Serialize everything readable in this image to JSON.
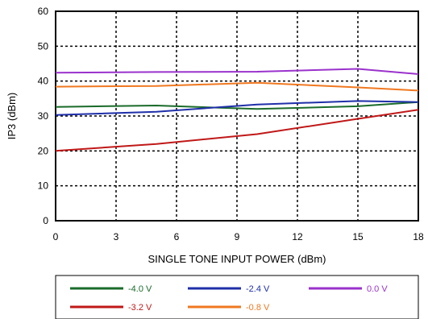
{
  "chart_data": {
    "type": "line",
    "title": "",
    "xlabel": "SINGLE TONE INPUT POWER (dBm)",
    "ylabel": "IP3 (dBm)",
    "xlim": [
      0,
      18
    ],
    "ylim": [
      0,
      60
    ],
    "xticks": [
      "0",
      "3",
      "6",
      "9",
      "12",
      "15",
      "18"
    ],
    "yticks": [
      "0",
      "10",
      "20",
      "30",
      "40",
      "50",
      "60"
    ],
    "grid": true,
    "legend_position": "bottom",
    "series": [
      {
        "name": "-4.0 V",
        "color": "#1a6b2a",
        "x": [
          0,
          5,
          10,
          15,
          18
        ],
        "y": [
          32.6,
          33.0,
          32.0,
          32.8,
          34.0
        ]
      },
      {
        "name": "-2.4 V",
        "color": "#1f2fa8",
        "x": [
          0,
          5,
          10,
          15,
          18
        ],
        "y": [
          30.3,
          31.2,
          33.3,
          34.3,
          34.0
        ]
      },
      {
        "name": "0.0 V",
        "color": "#9a32cc",
        "x": [
          0,
          5,
          10,
          15,
          18
        ],
        "y": [
          42.4,
          42.6,
          42.7,
          43.5,
          42.0
        ]
      },
      {
        "name": "-3.2 V",
        "color": "#c01818",
        "x": [
          0,
          5,
          10,
          15,
          18
        ],
        "y": [
          20.0,
          22.0,
          24.8,
          29.2,
          31.8
        ]
      },
      {
        "name": "-0.8 V",
        "color": "#f07820",
        "x": [
          0,
          5,
          10,
          15,
          18
        ],
        "y": [
          38.4,
          38.6,
          39.5,
          38.2,
          37.3
        ]
      }
    ]
  }
}
